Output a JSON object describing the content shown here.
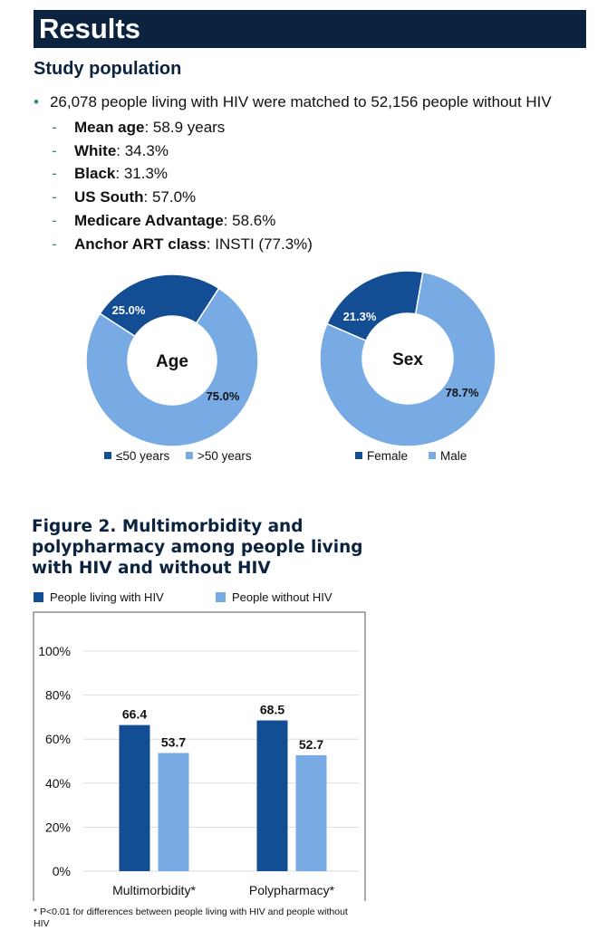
{
  "header": {
    "title": "Results"
  },
  "section_title": "Study population",
  "bullet": {
    "marker": "•",
    "text": "26,078 people living with HIV were matched to 52,156 people without HIV"
  },
  "items": [
    {
      "bold": "Mean age",
      "rest": ": 58.9 years"
    },
    {
      "bold": "White",
      "rest": ": 34.3%"
    },
    {
      "bold": "Black",
      "rest": ": 31.3%"
    },
    {
      "bold": "US South",
      "rest": ": 57.0%"
    },
    {
      "bold": "Medicare Advantage",
      "rest": ": 58.6%"
    },
    {
      "bold": "Anchor ART class",
      "rest": ": INSTI (77.3%)"
    }
  ],
  "colors": {
    "dark": "#134d93",
    "light": "#78abe3",
    "navy": "#0c2340"
  },
  "chart_data": [
    {
      "type": "pie",
      "donut": true,
      "title": "Age",
      "categories": [
        "≤50 years",
        ">50 years"
      ],
      "values": [
        25.0,
        75.0
      ],
      "labels": [
        "25.0%",
        "75.0%"
      ],
      "legend_position": "bottom"
    },
    {
      "type": "pie",
      "donut": true,
      "title": "Sex",
      "categories": [
        "Female",
        "Male"
      ],
      "values": [
        21.3,
        78.7
      ],
      "labels": [
        "21.3%",
        "78.7%"
      ],
      "legend_position": "bottom"
    },
    {
      "type": "bar",
      "title": "Figure 2. Multimorbidity and polypharmacy among people living with HIV and without HIV",
      "categories": [
        "Multimorbidity*",
        "Polypharmacy*"
      ],
      "series": [
        {
          "name": "People living with HIV",
          "values": [
            66.4,
            68.5
          ]
        },
        {
          "name": "People without HIV",
          "values": [
            53.7,
            52.7
          ]
        }
      ],
      "yticks": [
        "0%",
        "20%",
        "40%",
        "60%",
        "80%",
        "100%"
      ],
      "ylim": [
        0,
        100
      ],
      "grid": true,
      "legend_position": "top",
      "footnote": "* P<0.01 for differences between people living with HIV and people without HIV"
    }
  ]
}
